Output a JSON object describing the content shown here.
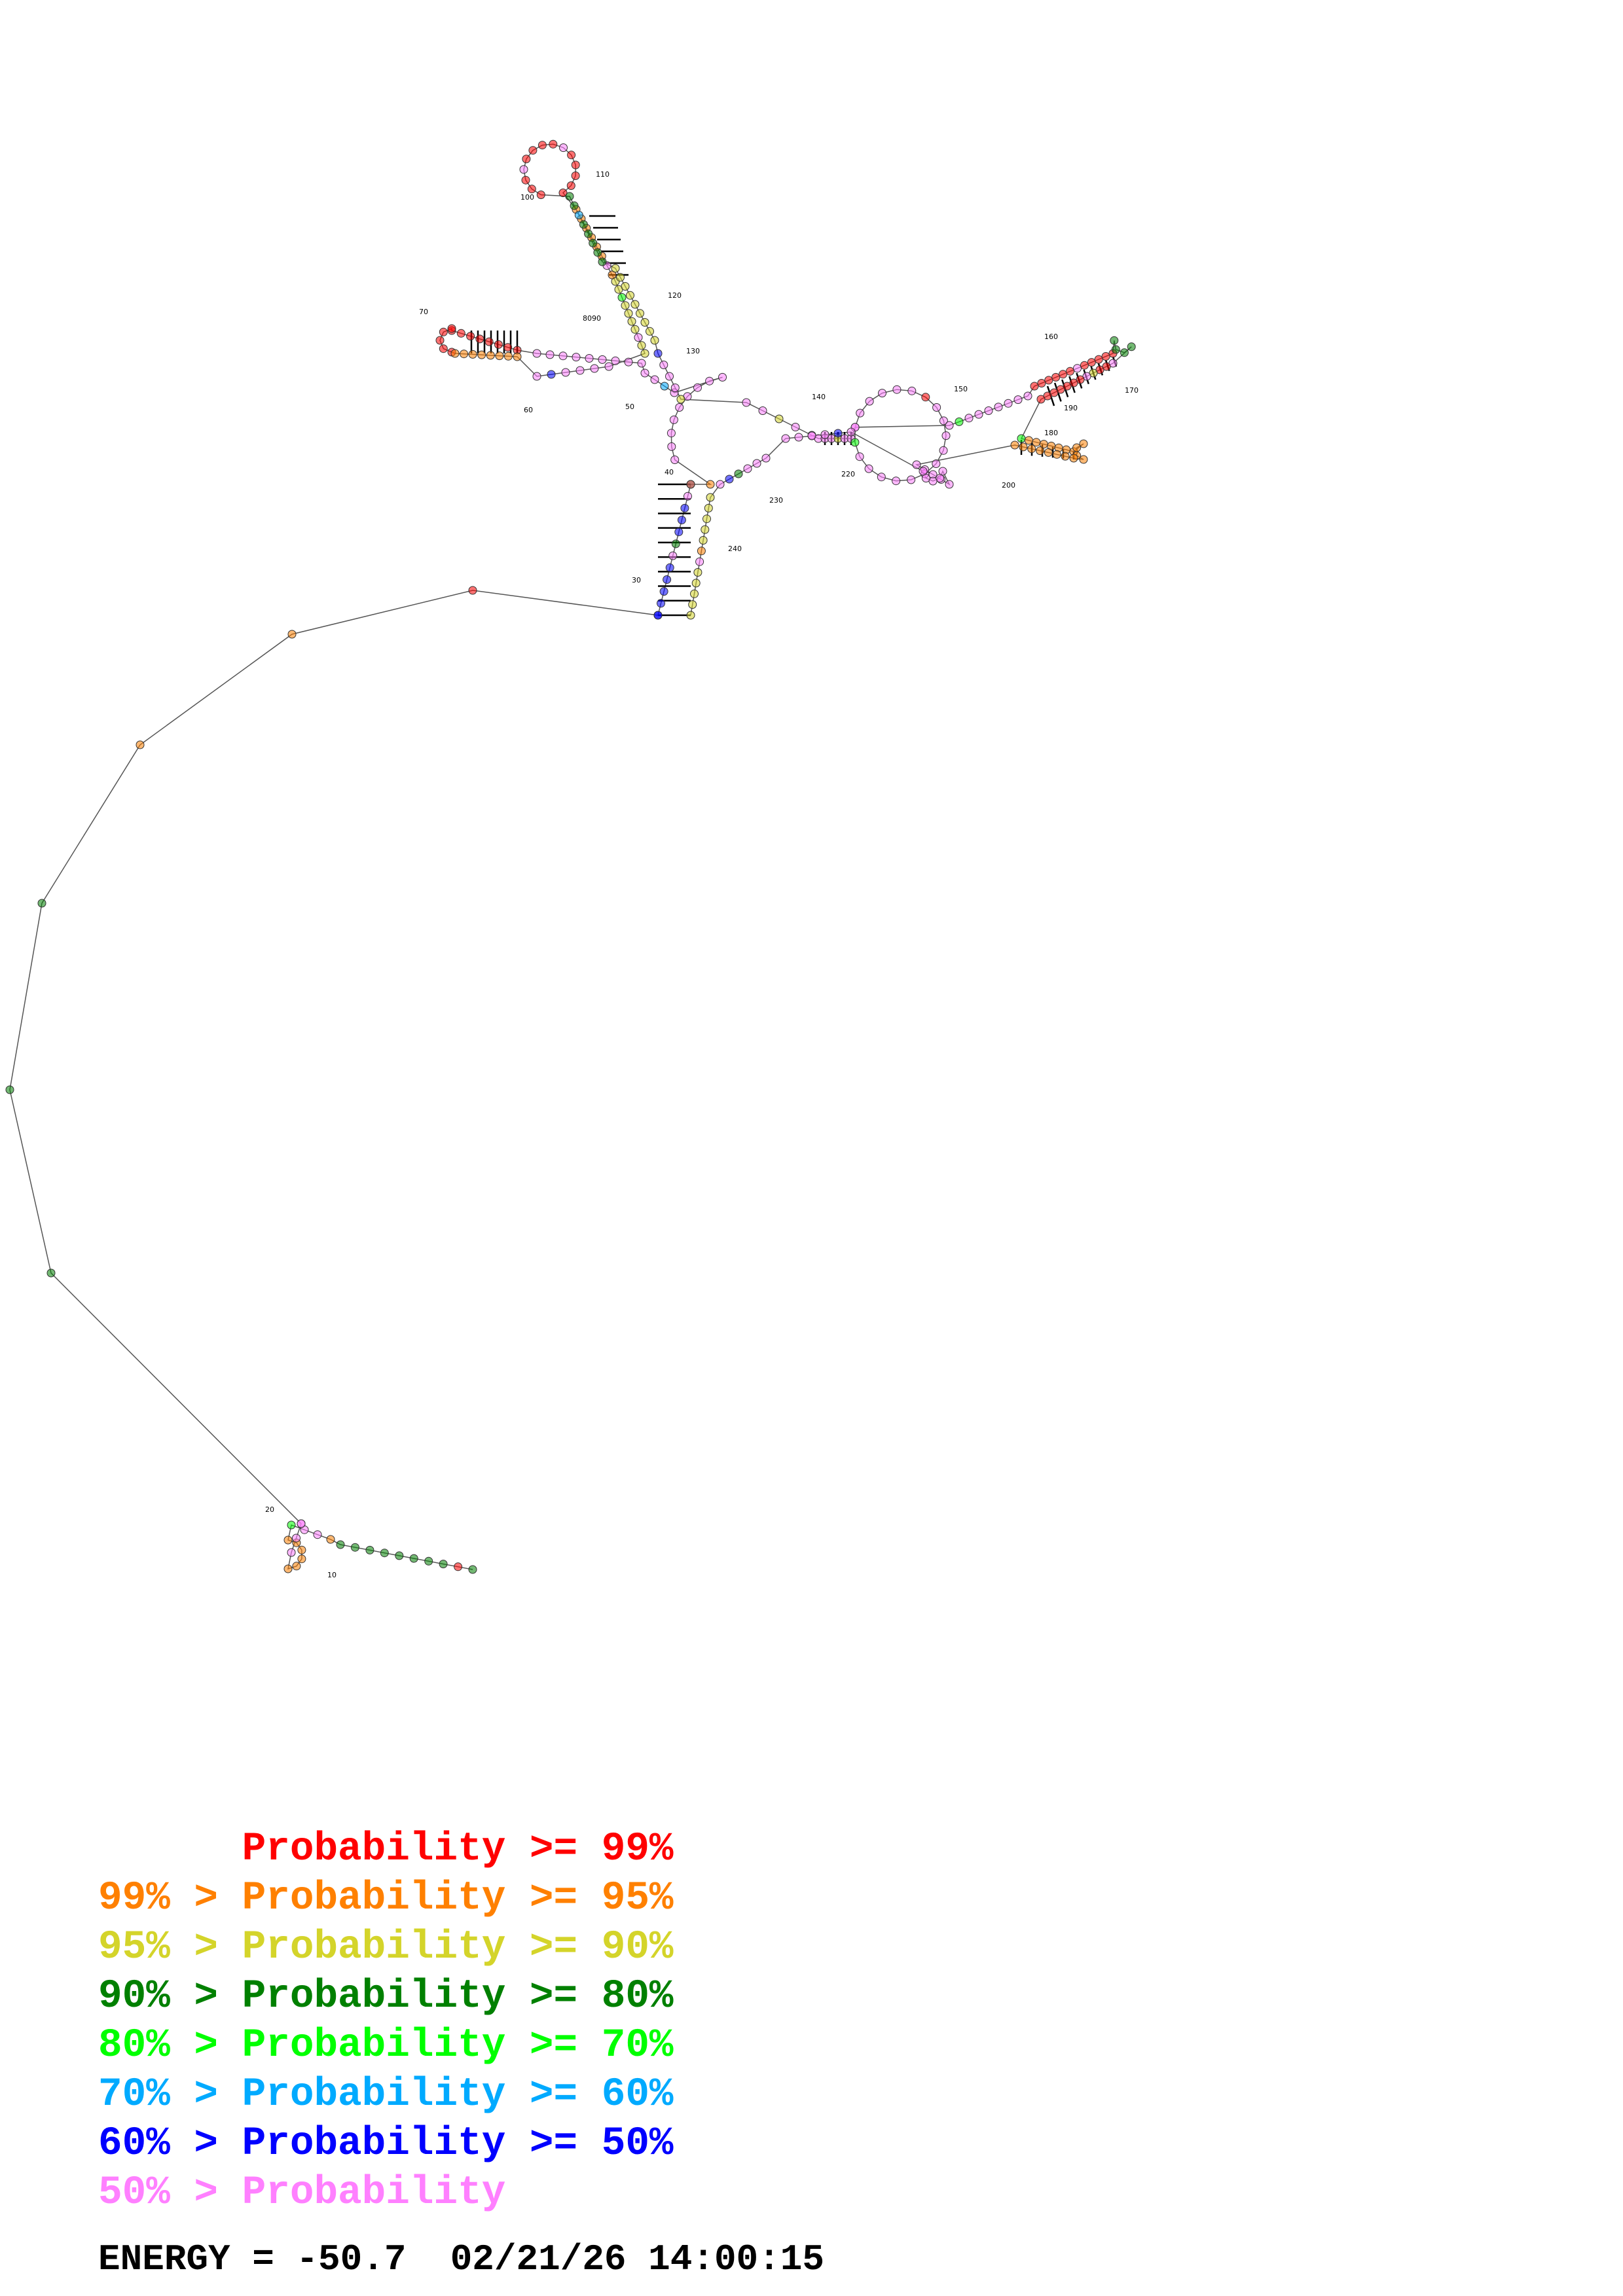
{
  "diagram": {
    "residue_number_labels": [
      "10",
      "20",
      "30",
      "40",
      "50",
      "60",
      "70",
      "8090",
      "100",
      "110",
      "120",
      "130",
      "140",
      "150",
      "160",
      "170",
      "180",
      "190",
      "200",
      "220",
      "230",
      "240"
    ],
    "colors": {
      "p99": "#ff0000",
      "p95": "#ff8000",
      "p90": "#d4d42a",
      "p80": "#008000",
      "p70": "#00ff00",
      "p60": "#00aaff",
      "p50": "#0000ff",
      "plow": "#ff80ff"
    }
  },
  "legend": [
    {
      "text": "      Probability >= 99%",
      "color": "#ff0000"
    },
    {
      "text": "99% > Probability >= 95%",
      "color": "#ff8000"
    },
    {
      "text": "95% > Probability >= 90%",
      "color": "#d4d42a"
    },
    {
      "text": "90% > Probability >= 80%",
      "color": "#008000"
    },
    {
      "text": "80% > Probability >= 70%",
      "color": "#00ff00"
    },
    {
      "text": "70% > Probability >= 60%",
      "color": "#00aaff"
    },
    {
      "text": "60% > Probability >= 50%",
      "color": "#0000ff"
    },
    {
      "text": "50% > Probability",
      "color": "#ff80ff"
    }
  ],
  "footer": {
    "energy": "ENERGY = -50.7  02/21/26 14:00:15"
  }
}
